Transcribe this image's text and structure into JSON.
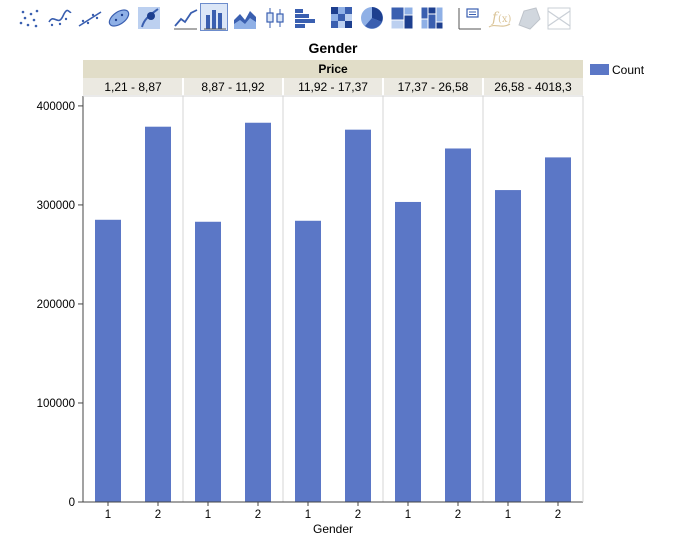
{
  "toolbar": {
    "buttons": [
      {
        "name": "points-icon",
        "active": false,
        "disabled": false
      },
      {
        "name": "smoother-icon",
        "active": false,
        "disabled": false
      },
      {
        "name": "line-of-fit-icon",
        "active": false,
        "disabled": false
      },
      {
        "name": "ellipse-icon",
        "active": false,
        "disabled": false
      },
      {
        "name": "contour-icon",
        "active": false,
        "disabled": false
      },
      {
        "name": "line-chart-icon",
        "active": false,
        "disabled": false
      },
      {
        "name": "bar-chart-icon",
        "active": true,
        "disabled": false
      },
      {
        "name": "area-chart-icon",
        "active": false,
        "disabled": false
      },
      {
        "name": "box-plot-icon",
        "active": false,
        "disabled": false
      },
      {
        "name": "histogram-icon",
        "active": false,
        "disabled": false
      },
      {
        "name": "heatmap-icon",
        "active": false,
        "disabled": false
      },
      {
        "name": "pie-chart-icon",
        "active": false,
        "disabled": false
      },
      {
        "name": "treemap-icon",
        "active": false,
        "disabled": false
      },
      {
        "name": "mosaic-icon",
        "active": false,
        "disabled": false
      },
      {
        "name": "caption-box-icon",
        "active": false,
        "disabled": false
      },
      {
        "name": "formula-icon",
        "active": false,
        "disabled": true
      },
      {
        "name": "map-shapes-icon",
        "active": false,
        "disabled": true
      },
      {
        "name": "parallel-icon",
        "active": false,
        "disabled": true
      }
    ]
  },
  "colors": {
    "bar": "#5b77c6",
    "header_band": "#e1ddc8",
    "level_band": "#ebe9e1",
    "grid_line": "#d4d4d4"
  },
  "chart_data": {
    "type": "bar",
    "title": "Gender",
    "group_title": "Price",
    "xlabel": "Gender",
    "ylabel": "",
    "legend": {
      "position": "top-right",
      "entries": [
        "Count"
      ]
    },
    "ylim": [
      0,
      410000
    ],
    "yticks": [
      0,
      100000,
      200000,
      300000,
      400000
    ],
    "ytick_labels": [
      "0",
      "100000",
      "200000",
      "300000",
      "400000"
    ],
    "grid": false,
    "groups": [
      {
        "label": "1,21 - 8,87",
        "categories": [
          "1",
          "2"
        ],
        "values": [
          285000,
          379000
        ]
      },
      {
        "label": "8,87 - 11,92",
        "categories": [
          "1",
          "2"
        ],
        "values": [
          283000,
          383000
        ]
      },
      {
        "label": "11,92 - 17,37",
        "categories": [
          "1",
          "2"
        ],
        "values": [
          284000,
          376000
        ]
      },
      {
        "label": "17,37 - 26,58",
        "categories": [
          "1",
          "2"
        ],
        "values": [
          303000,
          357000
        ]
      },
      {
        "label": "26,58 - 4018,3",
        "categories": [
          "1",
          "2"
        ],
        "values": [
          315000,
          348000
        ]
      }
    ]
  }
}
